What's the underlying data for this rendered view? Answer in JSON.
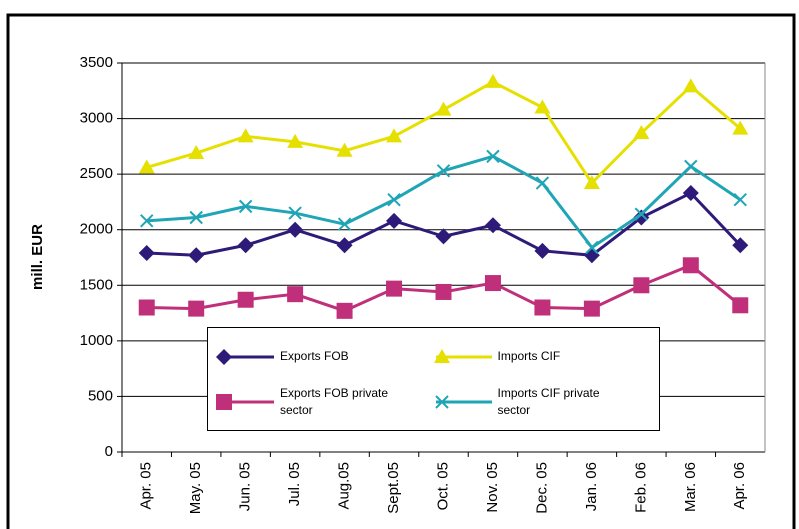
{
  "chart_data": {
    "type": "line",
    "y_label": "mill. EUR",
    "categories": [
      "Apr. 05",
      "May. 05",
      "Jun. 05",
      "Jul. 05",
      "Aug.05",
      "Sept.05",
      "Oct. 05",
      "Nov. 05",
      "Dec. 05",
      "Jan. 06",
      "Feb. 06",
      "Mar. 06",
      "Apr. 06"
    ],
    "series": [
      {
        "name": "Exports FOB",
        "color": "#2e1a78",
        "marker": "diamond",
        "values": [
          1790,
          1770,
          1860,
          2000,
          1860,
          2080,
          1940,
          2040,
          1810,
          1770,
          2110,
          2330,
          1860
        ]
      },
      {
        "name": "Imports CIF",
        "color": "#e6e000",
        "marker": "triangle",
        "values": [
          2560,
          2690,
          2840,
          2790,
          2710,
          2840,
          3080,
          3330,
          3100,
          2420,
          2870,
          3290,
          2910
        ]
      },
      {
        "name": "Exports FOB private sector",
        "color": "#c0307a",
        "marker": "square",
        "values": [
          1300,
          1290,
          1370,
          1420,
          1270,
          1470,
          1440,
          1520,
          1300,
          1290,
          1500,
          1680,
          1320
        ]
      },
      {
        "name": "Imports CIF private sector",
        "color": "#1fa5b5",
        "marker": "x",
        "values": [
          2080,
          2110,
          2210,
          2150,
          2050,
          2270,
          2530,
          2660,
          2420,
          1840,
          2140,
          2570,
          2270
        ]
      }
    ],
    "ylim": [
      0,
      3500
    ],
    "yticks": [
      0,
      500,
      1000,
      1500,
      2000,
      2500,
      3000,
      3500
    ],
    "grid": true
  }
}
